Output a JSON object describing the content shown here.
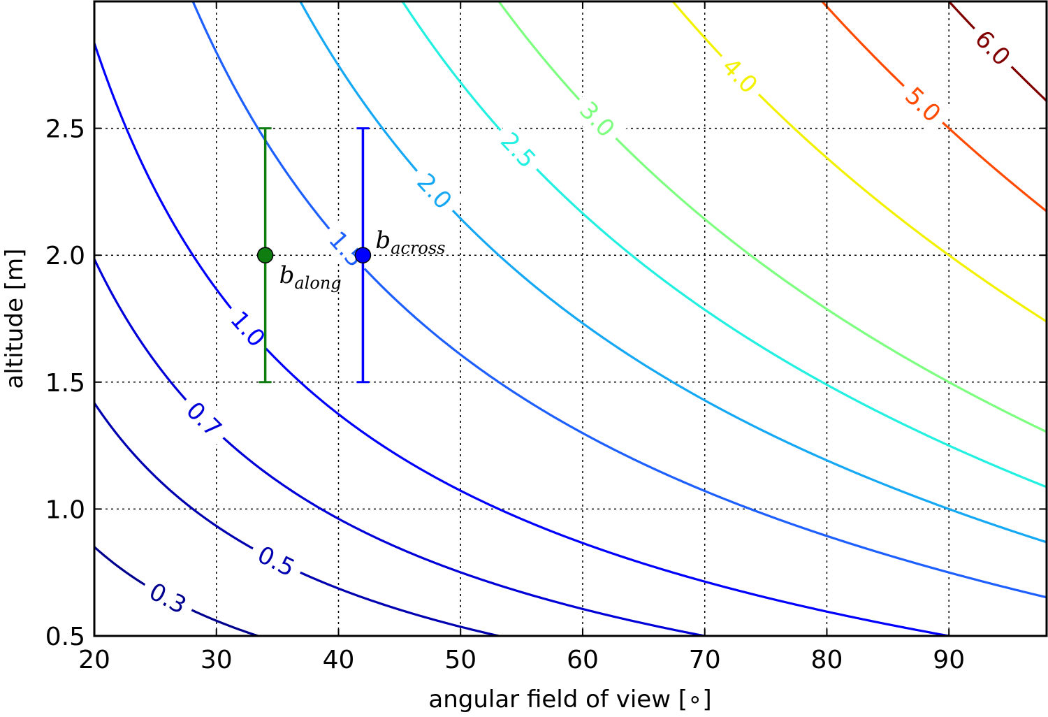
{
  "chart_data": {
    "type": "contour",
    "xlabel": "angular field of view [∘]",
    "ylabel": "altitude [m]",
    "xlim": [
      20,
      98
    ],
    "ylim": [
      0.5,
      3.0
    ],
    "x_ticks": [
      "20",
      "30",
      "40",
      "50",
      "60",
      "70",
      "80",
      "90"
    ],
    "y_ticks": [
      "0.5",
      "1.0",
      "1.5",
      "2.0",
      "2.5"
    ],
    "grid": true,
    "grid_style": "dotted",
    "contour_function": "value = 2 * altitude * tan(fov / 2)",
    "levels": [
      {
        "value": 0.3,
        "label": "0.3",
        "color": "#00008f"
      },
      {
        "value": 0.5,
        "label": "0.5",
        "color": "#0000b0"
      },
      {
        "value": 0.7,
        "label": "0.7",
        "color": "#0000d8"
      },
      {
        "value": 1.0,
        "label": "1.0",
        "color": "#0000ff"
      },
      {
        "value": 1.5,
        "label": "1.5",
        "color": "#1e60ff"
      },
      {
        "value": 2.0,
        "label": "2.0",
        "color": "#15a8f5"
      },
      {
        "value": 2.5,
        "label": "2.5",
        "color": "#22f0e0"
      },
      {
        "value": 3.0,
        "label": "3.0",
        "color": "#7dff80"
      },
      {
        "value": 4.0,
        "label": "4.0",
        "color": "#f2f200"
      },
      {
        "value": 5.0,
        "label": "5.0",
        "color": "#ff4a00"
      },
      {
        "value": 6.0,
        "label": "6.0",
        "color": "#800000"
      }
    ],
    "points": [
      {
        "name": "b_along",
        "label_main": "b",
        "label_sub": "along",
        "x": 34,
        "y": 2.0,
        "yerr_low": 1.5,
        "yerr_high": 2.5,
        "color": "#107d10"
      },
      {
        "name": "b_across",
        "label_main": "b",
        "label_sub": "across",
        "x": 42,
        "y": 2.0,
        "yerr_low": 1.5,
        "yerr_high": 2.5,
        "color": "#0000ff"
      }
    ]
  }
}
